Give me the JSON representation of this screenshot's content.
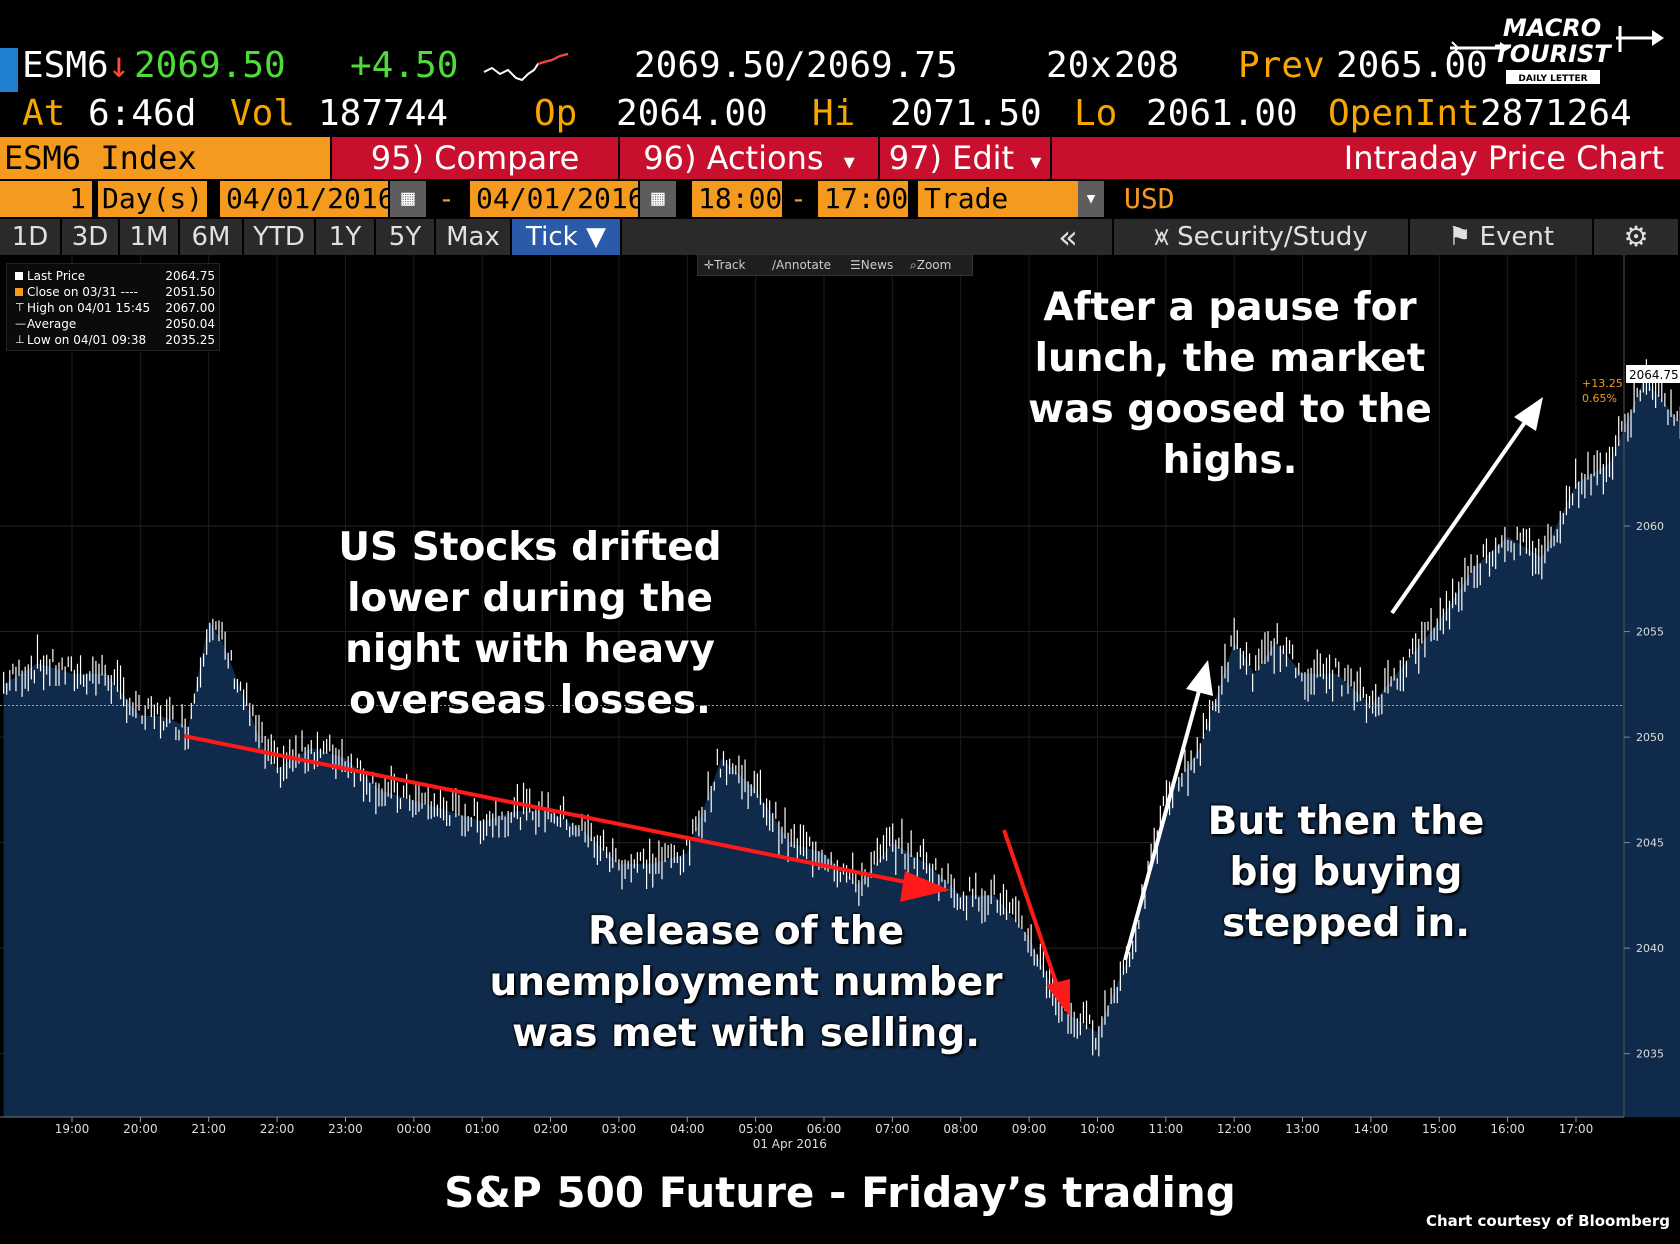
{
  "quote": {
    "ticker": "ESM6",
    "arrow": "↓",
    "last": "2069.50",
    "change": "+4.50",
    "bid_ask_bid": "2069.50",
    "bid_ask_sep": "/",
    "bid_ask_ask": "2069.75",
    "size_bid": "20",
    "size_sep": "x",
    "size_ask": "208",
    "prev_label": "Prev",
    "prev_value": "2065.00",
    "at_label": "At",
    "at_value": "6:46d",
    "vol_label": "Vol",
    "vol_value": "187744",
    "op_label": "Op",
    "op_value": "2064.00",
    "hi_label": "Hi",
    "hi_value": "2071.50",
    "lo_label": "Lo",
    "lo_value": "2061.00",
    "oi_label": "OpenInt",
    "oi_value": "2871264"
  },
  "logo": {
    "line1": "MACRO",
    "line2": "TOURIST",
    "line3": "DAILY LETTER"
  },
  "commands": {
    "index": "ESM6 Index",
    "compare": "95) Compare",
    "actions": "96) Actions",
    "edit": "97) Edit",
    "title": "Intraday Price Chart",
    "dropdown_glyph": "▾"
  },
  "params": {
    "period_n": "1",
    "period_unit": "Day(s)",
    "start_date": "04/01/2016",
    "dash": "-",
    "end_date": "04/01/2016",
    "start_time": "18:00",
    "end_time": "17:00",
    "type": "Trade",
    "currency": "USD",
    "cal_glyph": "▦",
    "dd_glyph": "▾"
  },
  "tabs": {
    "items": [
      "1D",
      "3D",
      "1M",
      "6M",
      "YTD",
      "1Y",
      "5Y",
      "Max",
      "Tick ▼"
    ],
    "collapse": "«",
    "security_study": "Security/Study",
    "event": "Event",
    "gear": "⚙"
  },
  "chart_toolbar": {
    "track": "Track",
    "annotate": "Annotate",
    "news": "News",
    "zoom": "Zoom"
  },
  "legend": {
    "rows": [
      {
        "label": "Last Price",
        "value": "2064.75"
      },
      {
        "label": "Close on 03/31 ----",
        "value": "2051.50"
      },
      {
        "label": "High on 04/01 15:45",
        "value": "2067.00"
      },
      {
        "label": "Average",
        "value": "2050.04"
      },
      {
        "label": "Low on 04/01 09:38",
        "value": "2035.25"
      }
    ]
  },
  "annotations": {
    "drift": "US Stocks drifted lower during the night with heavy overseas losses.",
    "release": "Release of the unemployment number was met with selling.",
    "buying": "But then the big buying stepped in.",
    "lunch": "After a pause for lunch, the market was goosed to the highs."
  },
  "caption": "S&P 500 Future - Friday’s trading",
  "credit": "Chart courtesy of Bloomberg",
  "colors": {
    "area_fill": "#0f2a4a",
    "line": "#ffffff",
    "red_arrow": "#ff1a1a",
    "prev_close_line": "#f39a1f",
    "orange": "#f39a1f",
    "bloomberg_red": "#c8102e"
  },
  "chart_data": {
    "type": "area",
    "title": "",
    "xlabel": "01 Apr 2016",
    "ylabel": "",
    "ylim": [
      2032,
      2070
    ],
    "yticks": [
      2035,
      2040,
      2045,
      2050,
      2055,
      2060
    ],
    "xticks": [
      "19:00",
      "20:00",
      "21:00",
      "22:00",
      "23:00",
      "00:00",
      "01:00",
      "02:00",
      "03:00",
      "04:00",
      "05:00",
      "06:00",
      "07:00",
      "08:00",
      "09:00",
      "10:00",
      "11:00",
      "12:00",
      "13:00",
      "14:00",
      "15:00",
      "16:00",
      "17:00"
    ],
    "x_hours_start": 18,
    "reference_line": {
      "label": "Close on 03/31",
      "value": 2051.5
    },
    "last_price_label": "2064.75",
    "change_label": "+13.25",
    "change_pct_label": "0.65%",
    "series": [
      {
        "name": "Last Price",
        "x": [
          18.0,
          18.5,
          19.0,
          19.5,
          20.0,
          20.3,
          20.7,
          21.0,
          21.2,
          21.5,
          21.8,
          22.0,
          22.5,
          23.0,
          23.5,
          24.0,
          24.5,
          25.0,
          25.5,
          26.0,
          26.5,
          27.0,
          27.5,
          28.0,
          28.5,
          29.0,
          29.5,
          30.0,
          30.5,
          31.0,
          31.5,
          32.0,
          32.5,
          33.0,
          33.5,
          34.0,
          34.5,
          35.0,
          35.5,
          35.8,
          36.0,
          36.3,
          36.6,
          37.0,
          37.5,
          38.0,
          38.5,
          39.0,
          39.5,
          40.0,
          40.5,
          41.0,
          41.5,
          42.0,
          42.5,
          43.0
        ],
        "y": [
          2052.5,
          2053.5,
          2053.0,
          2053.0,
          2051.0,
          2051.0,
          2050.5,
          2055.5,
          2054.5,
          2052.0,
          2049.5,
          2048.5,
          2049.5,
          2049.0,
          2047.5,
          2047.0,
          2046.5,
          2046.0,
          2046.5,
          2046.5,
          2045.5,
          2044.0,
          2044.0,
          2044.5,
          2049.0,
          2047.5,
          2045.0,
          2044.5,
          2043.0,
          2045.0,
          2044.0,
          2042.5,
          2042.5,
          2040.5,
          2037.0,
          2036.0,
          2040.0,
          2047.0,
          2049.5,
          2052.5,
          2054.5,
          2053.0,
          2054.5,
          2053.0,
          2053.0,
          2051.5,
          2053.5,
          2055.5,
          2058.0,
          2059.5,
          2058.5,
          2062.0,
          2063.0,
          2067.0,
          2065.0,
          2064.75
        ]
      }
    ]
  }
}
